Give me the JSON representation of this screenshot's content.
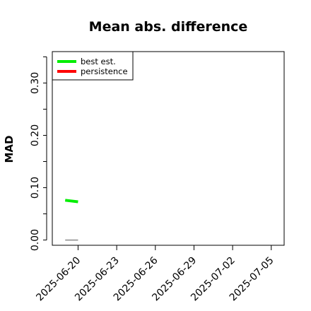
{
  "chart_data": {
    "type": "line",
    "title": "Mean abs. difference",
    "xlabel": "",
    "ylabel": "MAD",
    "x_axis": {
      "type": "date",
      "range": [
        "2025-06-18",
        "2025-07-06"
      ],
      "ticks": [
        "2025-06-20",
        "2025-06-23",
        "2025-06-26",
        "2025-06-29",
        "2025-07-02",
        "2025-07-05"
      ]
    },
    "y_axis": {
      "range": [
        -0.01,
        0.36
      ],
      "major_ticks": [
        0.0,
        0.1,
        0.2,
        0.3
      ],
      "major_tick_labels": [
        "0.00",
        "0.10",
        "0.20",
        "0.30"
      ],
      "minor_ticks": [
        0.05,
        0.15,
        0.25,
        0.35
      ]
    },
    "grid": false,
    "legend": {
      "position": "top-left"
    },
    "series": [
      {
        "name": "best est.",
        "color": "#00ee00",
        "points": [
          [
            "2025-06-19",
            0.076
          ],
          [
            "2025-06-20",
            0.073
          ]
        ]
      },
      {
        "name": "persistence",
        "color": "#ff0000",
        "points": []
      }
    ],
    "reference_line": {
      "color": "#777777",
      "y": 0.0,
      "x_range": [
        "2025-06-19",
        "2025-06-20"
      ]
    }
  }
}
